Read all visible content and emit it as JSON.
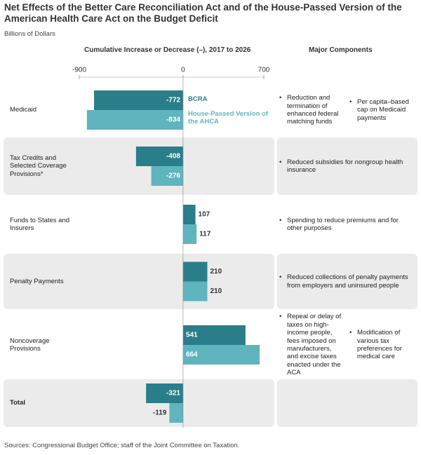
{
  "chart_data": {
    "type": "bar",
    "orientation": "horizontal",
    "title": "Net Effects of the Better Care Reconciliation Act and of the House-Passed Version of the American Health Care Act on the Budget Deficit",
    "subtitle": "Billions of Dollars",
    "axis_title": "Cumulative Increase or Decrease (–), 2017 to 2026",
    "components_title": "Major Components",
    "categories": [
      "Medicaid",
      "Tax Credits and Selected Coverage Provisions*",
      "Funds to States and Insurers",
      "Penalty Payments",
      "Noncoverage Provisions",
      "Total"
    ],
    "series": [
      {
        "name": "BCRA",
        "color": "#2a7e89",
        "values": [
          -772,
          -408,
          107,
          210,
          541,
          -321
        ]
      },
      {
        "name": "House-Passed Version of the AHCA",
        "color": "#5fb4be",
        "values": [
          -834,
          -276,
          117,
          210,
          664,
          -119
        ]
      }
    ],
    "xlim": [
      -900,
      700
    ],
    "xticks": [
      -900,
      0,
      700
    ],
    "components": [
      [
        "Reduction and termination of enhanced federal matching funds",
        "Per capita–based cap on Medicaid payments"
      ],
      [
        "Reduced subsidies for nongroup health insurance"
      ],
      [
        "Spending to reduce premiums and for other purposes"
      ],
      [
        "Reduced collections of penalty payments from employers and uninsured people"
      ],
      [
        "Repeal or delay of taxes on high-income people, fees imposed on manufacturers, and excise taxes enacted under the ACA",
        "Modification of various tax preferences for medical care"
      ],
      []
    ],
    "note": "Sources: Congressional Budget Office; staff of the Joint Committee on Taxation."
  }
}
